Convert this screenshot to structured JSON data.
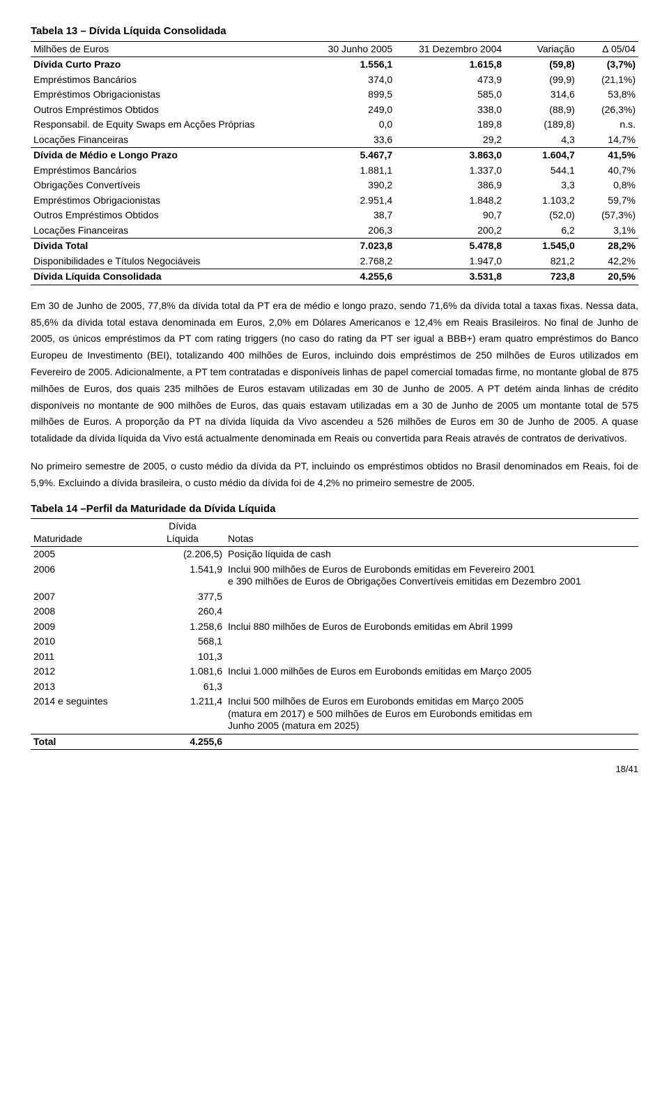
{
  "table13": {
    "title": "Tabela 13 – Dívida Líquida Consolidada",
    "headers": [
      "Milhões de Euros",
      "30 Junho 2005",
      "31 Dezembro 2004",
      "Variação",
      "∆ 05/04"
    ],
    "rows": [
      {
        "cells": [
          "Dívida Curto Prazo",
          "1.556,1",
          "1.615,8",
          "(59,8)",
          "(3,7%)"
        ],
        "bold": true
      },
      {
        "cells": [
          "Empréstimos Bancários",
          "374,0",
          "473,9",
          "(99,9)",
          "(21,1%)"
        ]
      },
      {
        "cells": [
          "Empréstimos Obrigacionistas",
          "899,5",
          "585,0",
          "314,6",
          "53,8%"
        ]
      },
      {
        "cells": [
          "Outros Empréstimos Obtidos",
          "249,0",
          "338,0",
          "(88,9)",
          "(26,3%)"
        ]
      },
      {
        "cells": [
          "Responsabil. de Equity Swaps em Acções Próprias",
          "0,0",
          "189,8",
          "(189,8)",
          "n.s."
        ]
      },
      {
        "cells": [
          "Locações Financeiras",
          "33,6",
          "29,2",
          "4,3",
          "14,7%"
        ],
        "underline": true
      },
      {
        "cells": [
          "Dívida de Médio e Longo Prazo",
          "5.467,7",
          "3.863,0",
          "1.604,7",
          "41,5%"
        ],
        "bold": true
      },
      {
        "cells": [
          "Empréstimos Bancários",
          "1.881,1",
          "1.337,0",
          "544,1",
          "40,7%"
        ]
      },
      {
        "cells": [
          "Obrigações Convertíveis",
          "390,2",
          "386,9",
          "3,3",
          "0,8%"
        ]
      },
      {
        "cells": [
          "Empréstimos Obrigacionistas",
          "2.951,4",
          "1.848,2",
          "1.103,2",
          "59,7%"
        ]
      },
      {
        "cells": [
          "Outros Empréstimos Obtidos",
          "38,7",
          "90,7",
          "(52,0)",
          "(57,3%)"
        ]
      },
      {
        "cells": [
          "Locações Financeiras",
          "206,3",
          "200,2",
          "6,2",
          "3,1%"
        ],
        "underline": true
      },
      {
        "cells": [
          "Divida Total",
          "7.023,8",
          "5.478,8",
          "1.545,0",
          "28,2%"
        ],
        "bold": true
      },
      {
        "cells": [
          "Disponibilidades e Títulos Negociáveis",
          "2.768,2",
          "1.947,0",
          "821,2",
          "42,2%"
        ],
        "underline": true
      },
      {
        "cells": [
          "Dívida Líquida Consolidada",
          "4.255,6",
          "3.531,8",
          "723,8",
          "20,5%"
        ],
        "bold": true,
        "bottom": true
      }
    ]
  },
  "para1": "Em 30 de Junho de 2005, 77,8% da dívida total da PT era de médio e longo prazo, sendo 71,6% da dívida total a taxas fixas. Nessa data, 85,6% da dívida total estava denominada em Euros, 2,0% em Dólares Americanos e 12,4% em Reais Brasileiros. No final de Junho de 2005, os únicos empréstimos da PT com rating triggers (no caso do rating da PT ser igual a BBB+) eram quatro empréstimos do Banco Europeu de Investimento (BEI), totalizando 400 milhões de Euros, incluindo dois empréstimos de 250 milhões de Euros utilizados em Fevereiro de 2005. Adicionalmente, a PT tem contratadas e disponíveis linhas de papel comercial tomadas firme, no montante global de 875 milhões de Euros, dos quais 235 milhões de Euros estavam utilizadas em 30 de Junho de 2005. A PT detém ainda linhas de crédito disponíveis no montante de 900 milhões de Euros, das quais estavam utilizadas em a 30 de Junho de 2005 um montante total de 575 milhões de Euros. A proporção da PT na dívida líquida da Vivo ascendeu a 526 milhões de Euros em 30 de Junho de 2005. A quase totalidade da dívida líquida da Vivo está actualmente denominada em Reais ou convertida para Reais através de contratos de derivativos.",
  "para2": "No primeiro semestre de 2005, o custo médio da dívida da PT, incluindo os empréstimos obtidos no Brasil denominados em Reais, foi de 5,9%. Excluindo a dívida brasileira, o custo médio da dívida foi de 4,2% no primeiro semestre de 2005.",
  "table14": {
    "title": "Tabela 14 –Perfil da Maturidade da Dívida Líquida",
    "headers": [
      "Maturidade",
      "Dívida\nLíquida",
      "Notas"
    ],
    "rows": [
      {
        "cells": [
          "2005",
          "(2.206,5)",
          "Posição líquida de cash"
        ]
      },
      {
        "cells": [
          "2006",
          "1.541,9",
          "Inclui 900 milhões de Euros de Eurobonds emitidas em Fevereiro 2001\ne 390 milhões de Euros de Obrigações Convertíveis emitidas em Dezembro 2001"
        ]
      },
      {
        "cells": [
          "2007",
          "377,5",
          ""
        ]
      },
      {
        "cells": [
          "2008",
          "260,4",
          ""
        ]
      },
      {
        "cells": [
          "2009",
          "1.258,6",
          "Inclui 880 milhões de Euros de Eurobonds emitidas em Abril 1999"
        ]
      },
      {
        "cells": [
          "2010",
          "568,1",
          ""
        ]
      },
      {
        "cells": [
          "2011",
          "101,3",
          ""
        ]
      },
      {
        "cells": [
          "2012",
          "1.081,6",
          "Inclui 1.000 milhões de Euros em Eurobonds emitidas em Março 2005"
        ]
      },
      {
        "cells": [
          "2013",
          "61,3",
          ""
        ]
      },
      {
        "cells": [
          "2014 e seguintes",
          "1.211,4",
          "Inclui 500 milhões de Euros em Eurobonds emitidas em Março 2005\n(matura em 2017) e 500 milhões de Euros em Eurobonds emitidas em\nJunho 2005 (matura em 2025)"
        ],
        "underline": true
      },
      {
        "cells": [
          "Total",
          "4.255,6",
          ""
        ],
        "bold": true,
        "bottom": true
      }
    ]
  },
  "page_number": "18/41"
}
